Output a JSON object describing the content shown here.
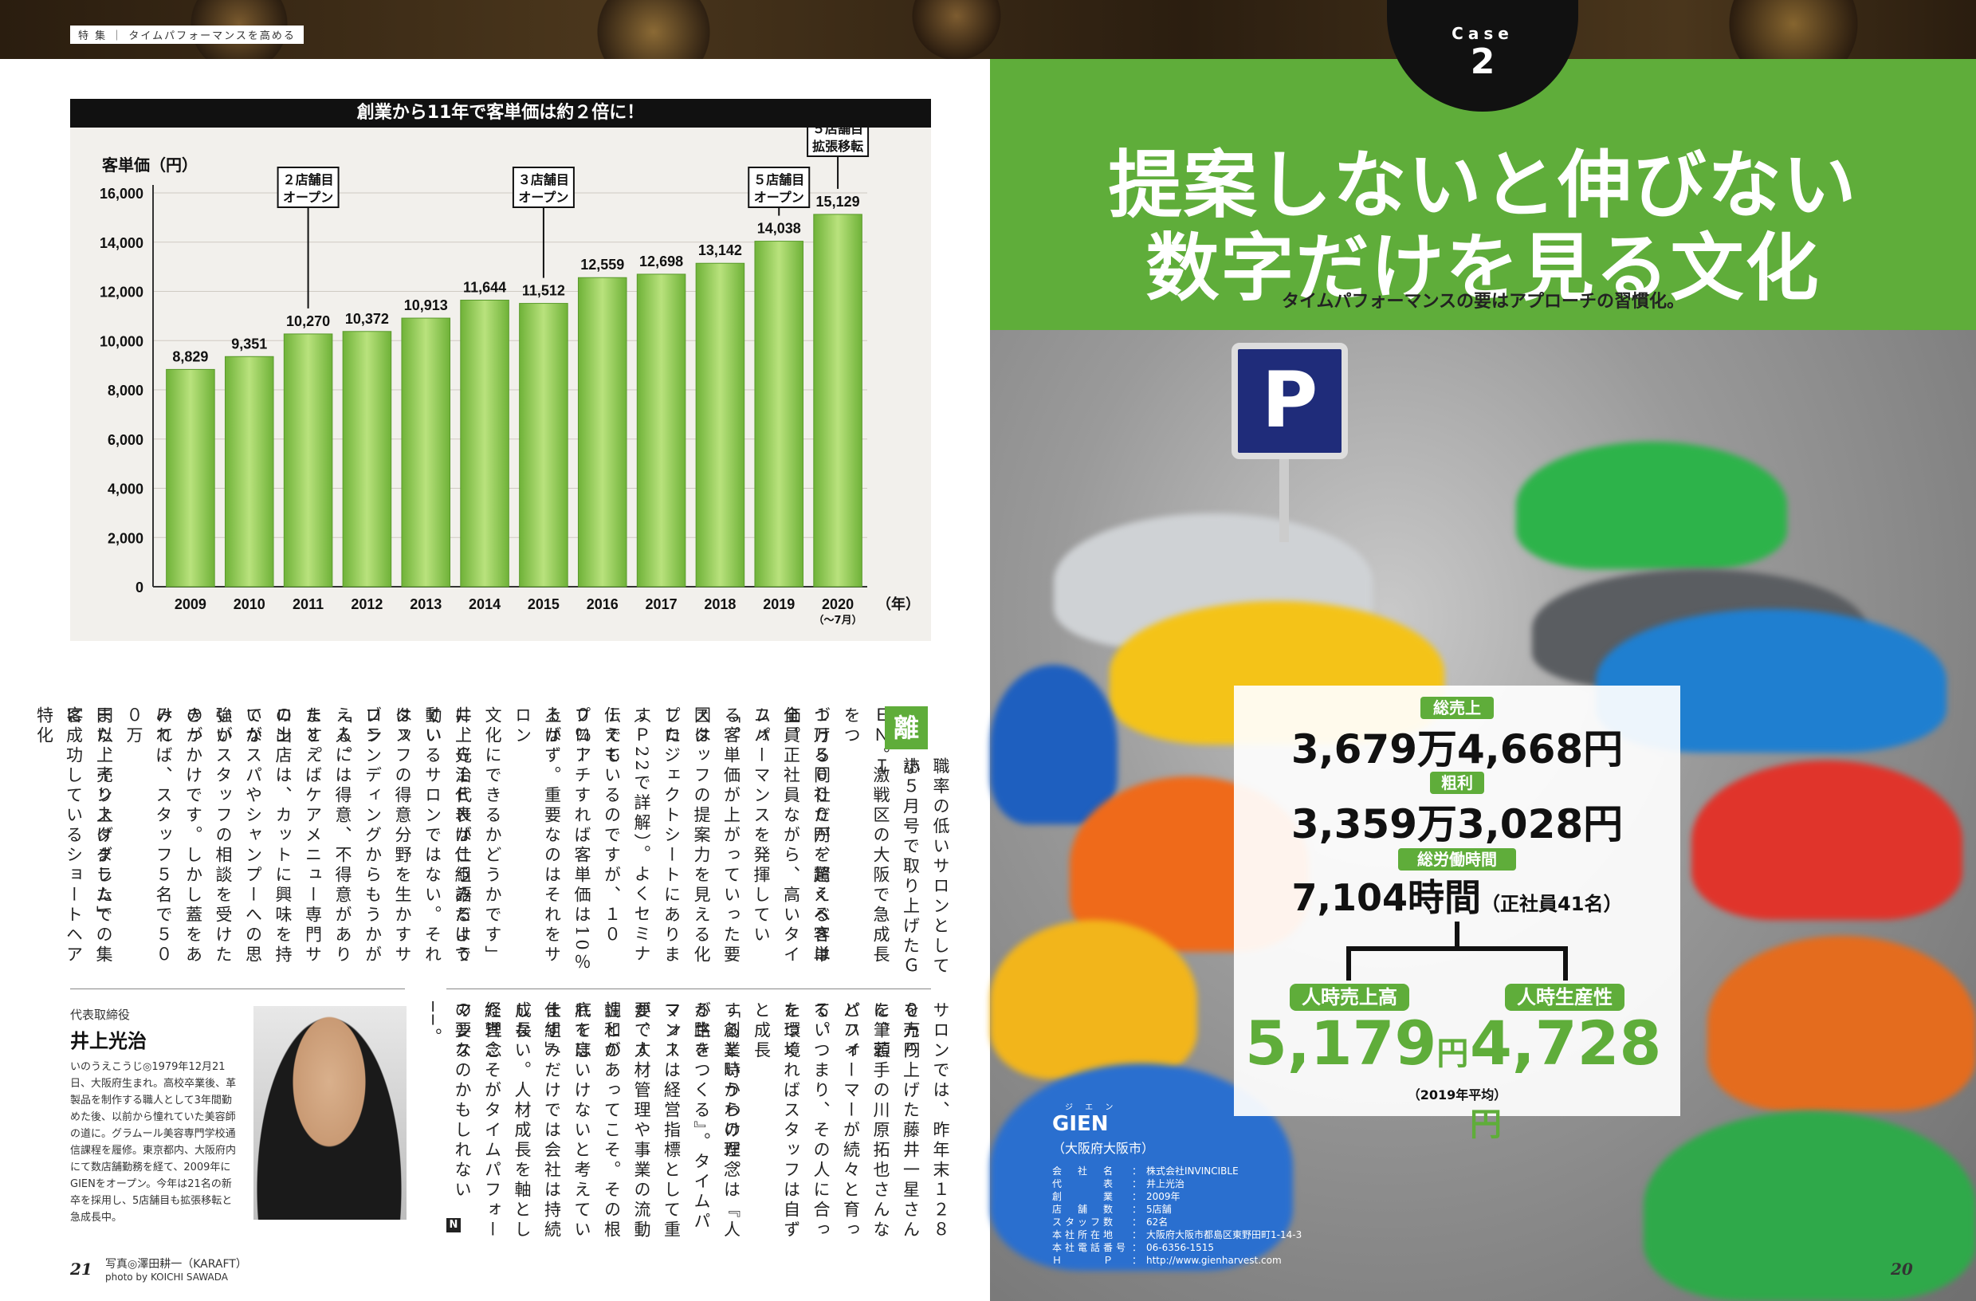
{
  "header": {
    "series_tag": "特 集 ｜ タイムパフォーマンスを高める"
  },
  "chart_data": {
    "type": "bar",
    "title": "創業から11年で客単価は約２倍に！",
    "ylabel": "客単価（円）",
    "xlabel": "（年）",
    "categories": [
      "2009",
      "2010",
      "2011",
      "2012",
      "2013",
      "2014",
      "2015",
      "2016",
      "2017",
      "2018",
      "2019",
      "2020"
    ],
    "category_sublabel": {
      "2020": "（〜7月）"
    },
    "values": [
      8829,
      9351,
      10270,
      10372,
      10913,
      11644,
      11512,
      12559,
      12698,
      13142,
      14038,
      15129
    ],
    "value_labels": [
      "8,829",
      "9,351",
      "10,270",
      "10,372",
      "10,913",
      "11,644",
      "11,512",
      "12,559",
      "12,698",
      "13,142",
      "14,038",
      "15,129"
    ],
    "ylim": [
      0,
      16000
    ],
    "yticks": [
      0,
      2000,
      4000,
      6000,
      8000,
      10000,
      12000,
      14000,
      16000
    ],
    "ytick_labels": [
      "0",
      "2,000",
      "4,000",
      "6,000",
      "8,000",
      "10,000",
      "12,000",
      "14,000",
      "16,000"
    ],
    "annotations": [
      {
        "category": "2011",
        "text": [
          "２店舗目",
          "オープン"
        ]
      },
      {
        "category": "2015",
        "text": [
          "３店舗目",
          "オープン"
        ]
      },
      {
        "category": "2019",
        "text": [
          "５店舗目",
          "オープン"
        ]
      },
      {
        "category": "2020",
        "text": [
          "５店舗目",
          "拡張移転"
        ]
      }
    ],
    "bar_color": "#8cc84b"
  },
  "article": {
    "drop_cap": "離",
    "columns_block1": [
      "職率の低いサロンとして小",
      "誌５月号で取り上げたＧＩ",
      "ＥＮ。激戦区の大阪で急成長をつ",
      "づける同社だが、驚くべきは",
      "１万５０００円を超える客単価。",
      "全員正社員ながら、高いタイムパ",
      "フォーマンスを発揮している。",
      "「客単価が上がっていった要因は",
      "スタッフの提案力を見える化した",
      "プロジェクトシートにあります",
      "（Ｐ22で詳解）。よくセミナーでも",
      "伝えているのですが、１００％ア",
      "プローチすれば客単価は10％上が",
      "るはず。重要なのはそれをサロン",
      "文化にできるかどうかです」",
      "井上光治代表がこう語るよう",
      "に、ＧＩＥＮは仕組みだけで動い",
      "ているサロンではない。それはス",
      "タッフの得意分野を生かすサロン",
      "ブランディングからもうかがえる。",
      "「人には得意、不得意があります。",
      "たとえばケアメニュー専門サロン",
      "の出店は、カットに興味を持てな",
      "いがスパやシャンプーへの思いが",
      "強いスタッフの相談を受けたのが",
      "きっかけです。しかし蓋をあけて",
      "みれば、スタッフ５名で５００万",
      "円以上売り上げました」",
      "また、インスタグラムでの集客",
      "に成功しているショートヘア特化"
    ],
    "columns_block2": [
      "サロンでは、昨年末１２８０万円",
      "を売り上げた藤井一星さんを筆頭",
      "に、若手の川原拓也さんなどハイ",
      "パフォーマーが続々と育ってい",
      "る。つまり、その人に合った環境",
      "をつくればスタッフは自ずと成長",
      "するというわけだ。",
      "「創業時からの理念は『人が生き",
      "る路をつくる』。タイムパフォー",
      "マンスは経営指標として重要です",
      "が、人材管理や事業の流動性との",
      "調和があってこそ。その根底を忘",
      "れてはいけないと考えています」",
      "仕組みだけでは会社は持続成長",
      "しない。人材成長を軸とした理念",
      "経営こそがタイムパフォーマンス",
      "の要なのかもしれない──。"
    ]
  },
  "profile": {
    "role": "代表取締役",
    "name": "井上光治",
    "bio": "いのうえこうじ◎1979年12月21日、大阪府生まれ。高校卒業後、革製品を制作する職人として3年間勤めた後、以前から憧れていた美容師の道に。グラムール美容専門学校通信課程を履修。東京都内、大阪府内にて数店舗勤務を経て、2009年にGIENをオープン。今年は21名の新卒を採用し、5店舗目も拡張移転と急成長中。"
  },
  "credits": {
    "folio_left": "21",
    "photo_credit_jp": "写真◎澤田耕一（KARAFT）",
    "photo_credit_en": "photo by KOICHI SAWADA",
    "folio_right": "20"
  },
  "case": {
    "label": "Case",
    "number": "2",
    "headline_line1": "提案しないと伸びない",
    "headline_line2": "数字だけを見る文化",
    "subtitle": "タイムパフォーマンスの要はアプローチの習慣化。",
    "parking_sign": "P"
  },
  "stats": {
    "sales_label": "総売上",
    "sales_value": "3,679万4,668円",
    "gross_label": "粗利",
    "gross_value": "3,359万3,028円",
    "hours_label": "総労働時間",
    "hours_value": "7,104時間",
    "hours_note": "（正社員41名）",
    "per_hour_sales_label": "人時売上高",
    "per_hour_sales_value": "5,179",
    "per_hour_prod_label": "人時生産性",
    "per_hour_prod_value": "4,728",
    "yen": "円",
    "period_note": "（2019年平均）"
  },
  "company": {
    "name_ruby": "ジ エ ン",
    "name": "GIEN",
    "location": "（大阪府大阪市）",
    "rows": [
      [
        "会　社　名",
        "株式会社INVINCIBLE"
      ],
      [
        "代　　　表",
        "井上光治"
      ],
      [
        "創　　　業",
        "2009年"
      ],
      [
        "店　舗　数",
        "5店舗"
      ],
      [
        "スタッフ数",
        "62名"
      ],
      [
        "本社所在地",
        "大阪府大阪市都島区東野田町1-14-3"
      ],
      [
        "本社電話番号",
        "06-6356-1515"
      ],
      [
        "Ｈ　　　Ｐ",
        "http://www.gienharvest.com"
      ]
    ]
  }
}
